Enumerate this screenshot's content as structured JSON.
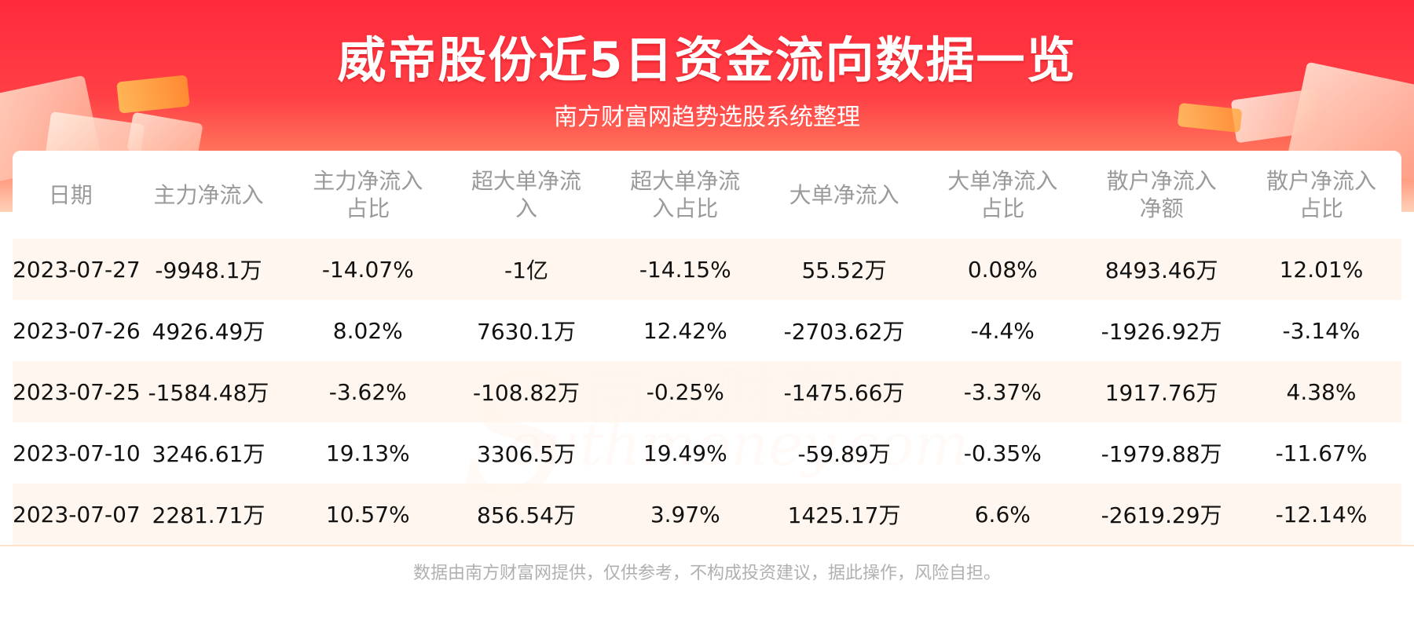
{
  "header": {
    "title": "威帝股份近5日资金流向数据一览",
    "subtitle": "南方财富网趋势选股系统整理"
  },
  "watermark": {
    "text_cn": "南方财富网",
    "text_en": "outhmoney.com",
    "letter": "S"
  },
  "footer": {
    "disclaimer": "数据由南方财富网提供，仅供参考，不构成投资建议，据此操作，风险自担。"
  },
  "colors": {
    "banner_red": "#ff2a3c",
    "row_stripe": "#fff6ec",
    "header_text": "#9a9a9a"
  },
  "chart_data": {
    "type": "table",
    "title": "威帝股份近5日资金流向数据一览",
    "subtitle": "南方财富网趋势选股系统整理",
    "columns": [
      [
        "日期"
      ],
      [
        "主力净流入"
      ],
      [
        "主力净流入",
        "占比"
      ],
      [
        "超大单净流",
        "入"
      ],
      [
        "超大单净流",
        "入占比"
      ],
      [
        "大单净流入"
      ],
      [
        "大单净流入",
        "占比"
      ],
      [
        "散户净流入",
        "净额"
      ],
      [
        "散户净流入",
        "占比"
      ]
    ],
    "rows": [
      [
        "2023-07-27",
        "-9948.1万",
        "-14.07%",
        "-1亿",
        "-14.15%",
        "55.52万",
        "0.08%",
        "8493.46万",
        "12.01%"
      ],
      [
        "2023-07-26",
        "4926.49万",
        "8.02%",
        "7630.1万",
        "12.42%",
        "-2703.62万",
        "-4.4%",
        "-1926.92万",
        "-3.14%"
      ],
      [
        "2023-07-25",
        "-1584.48万",
        "-3.62%",
        "-108.82万",
        "-0.25%",
        "-1475.66万",
        "-3.37%",
        "1917.76万",
        "4.38%"
      ],
      [
        "2023-07-10",
        "3246.61万",
        "19.13%",
        "3306.5万",
        "19.49%",
        "-59.89万",
        "-0.35%",
        "-1979.88万",
        "-11.67%"
      ],
      [
        "2023-07-07",
        "2281.71万",
        "10.57%",
        "856.54万",
        "3.97%",
        "1425.17万",
        "6.6%",
        "-2619.29万",
        "-12.14%"
      ]
    ]
  }
}
